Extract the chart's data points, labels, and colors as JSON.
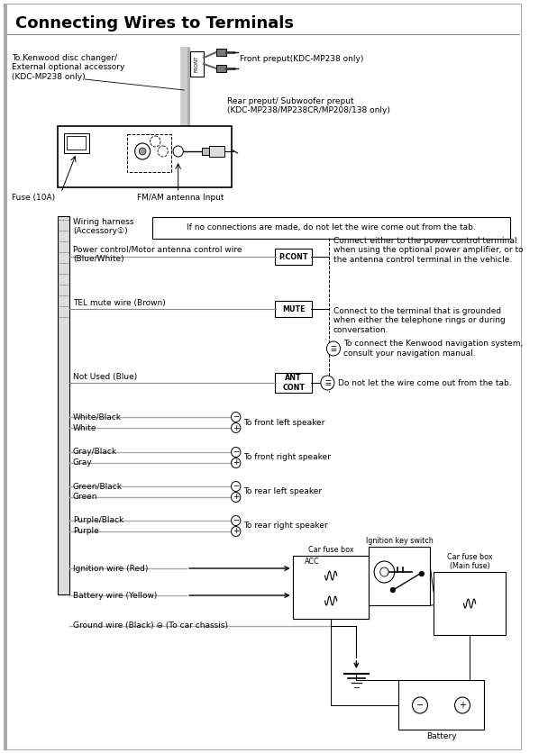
{
  "title": "Connecting Wires to Terminals",
  "bg_color": "#ffffff",
  "title_fontsize": 13,
  "annotations": {
    "front_preput": "Front preput(KDC-MP238 only)",
    "rear_preput": "Rear preput/ Subwoofer preput\n(KDC-MP238/MP238CR/MP208/138 only)",
    "fuse": "Fuse (10A)",
    "antenna": "FM/AM antenna Input",
    "to_kenwood": "To Kenwood disc changer/\nExternal optional accessory\n(KDC-MP238 only)",
    "wiring_harness": "Wiring harness\n(Accessory①)",
    "no_connections": "If no connections are made, do not let the wire come out from the tab.",
    "power_control_wire": "Power control/Motor antenna control wire\n(Blue/White)",
    "p_cont_label": "P.CONT",
    "p_cont_desc": "Connect either to the power control terminal\nwhen using the optional power amplifier, or to\nthe antenna control terminal in the vehicle.",
    "tel_mute": "TEL mute wire (Brown)",
    "mute_label": "MUTE",
    "mute_desc": "Connect to the terminal that is grounded\nwhen either the telephone rings or during\nconversation.",
    "nav_desc": "To connect the Kenwood navigation system,\nconsult your navigation manual.",
    "not_used": "Not Used (Blue)",
    "ant_cont_label": "ANT\nCONT",
    "ant_cont_desc": "Do not let the wire come out from the tab.",
    "white_black": "White/Black",
    "white": "White",
    "front_left": "To front left speaker",
    "gray_black": "Gray/Black",
    "gray": "Gray",
    "front_right": "To front right speaker",
    "green_black": "Green/Black",
    "green": "Green",
    "rear_left": "To rear left speaker",
    "purple_black": "Purple/Black",
    "purple": "Purple",
    "rear_right": "To rear right speaker",
    "ignition_wire": "Ignition wire (Red)",
    "acc_label": "ACC",
    "battery_wire": "Battery wire (Yellow)",
    "ground_wire": "Ground wire (Black) ⊖ (To car chassis)",
    "car_fuse_box": "Car fuse box",
    "ignition_key": "Ignition key switch",
    "car_fuse_main": "Car fuse box\n(Main fuse)",
    "battery": "Battery"
  }
}
